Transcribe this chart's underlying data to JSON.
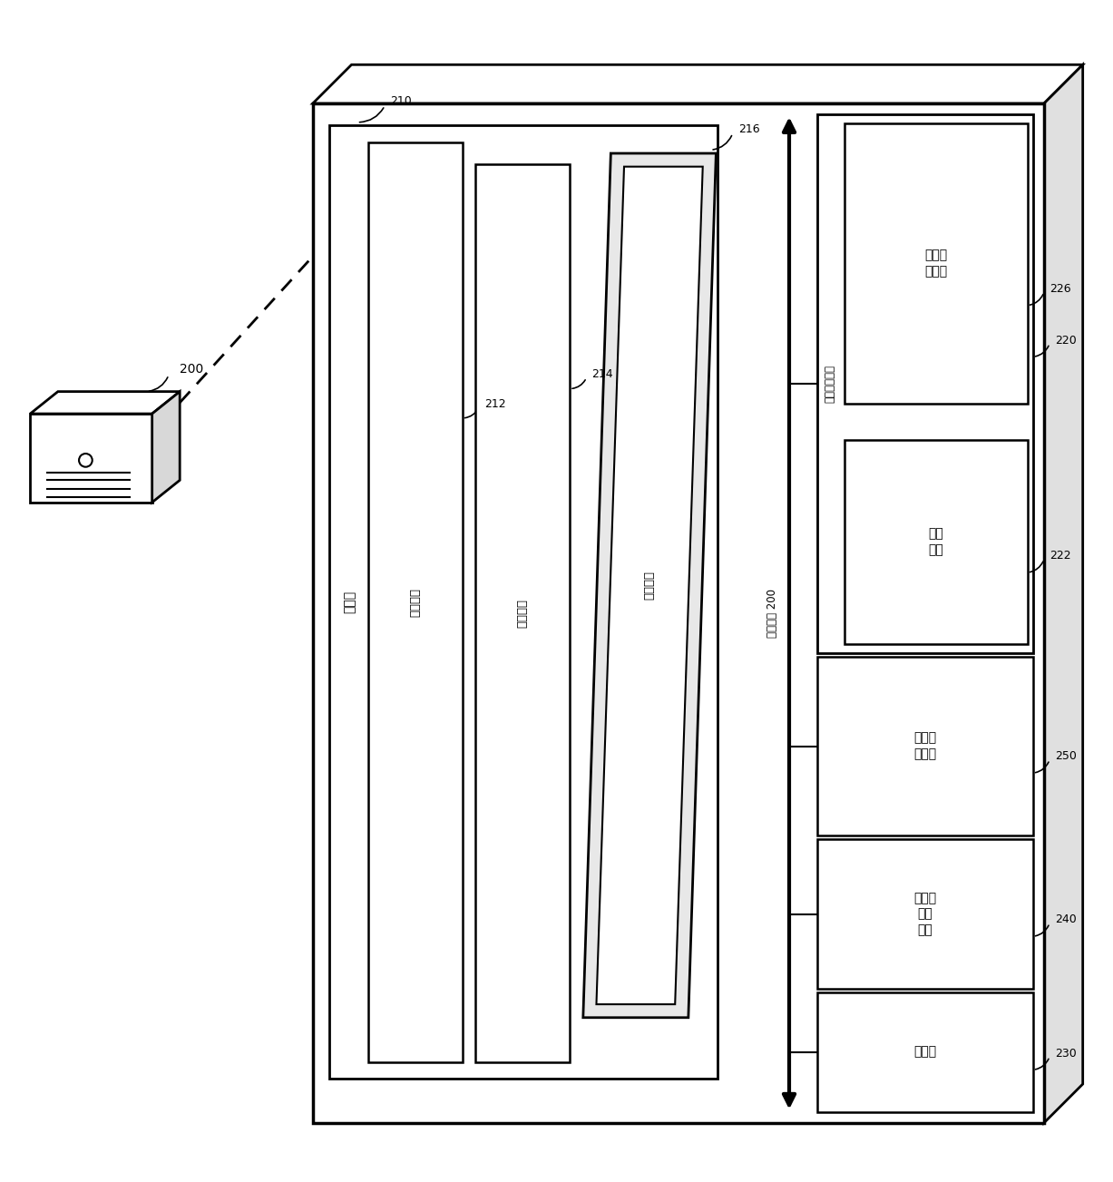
{
  "bg_color": "#ffffff",
  "computer_label": "200",
  "memory_box_label": "存储器",
  "memory_label_num": "210",
  "op_logic_label": "操作逻辑",
  "op_logic_num": "212",
  "iface_logic_label": "接口逻辑",
  "iface_logic_num": "214",
  "analysis_logic_label": "分析逻辑",
  "analysis_logic_num": "216",
  "bus_label": "本地接口 200",
  "data_store_label": "数据存\n储装置",
  "data_store_num": "220",
  "analysis_data_label": "分析句\n子数据",
  "analysis_data_num": "226",
  "grammar_data_label": "语法\n数据",
  "grammar_data_num": "222",
  "network_hw_label": "网络接\n口硬件",
  "network_hw_num": "250",
  "io_hw_label": "输入／\n输出\n硬件",
  "io_hw_num": "240",
  "processor_label": "处理器",
  "processor_num": "230"
}
